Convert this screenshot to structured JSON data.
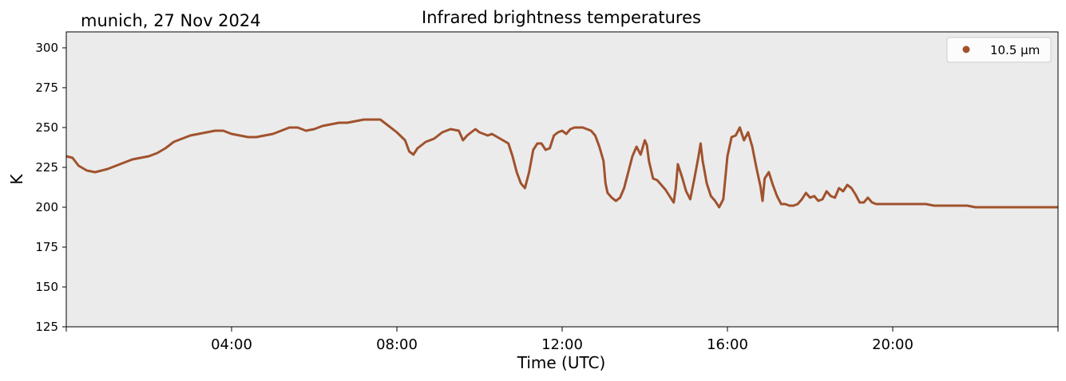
{
  "station_label": "munich, 27 Nov 2024",
  "chart_data": {
    "type": "scatter",
    "title": "Infrared brightness temperatures",
    "xlabel": "Time (UTC)",
    "ylabel": "K",
    "x_unit": "hours UTC",
    "xlim": [
      0,
      24
    ],
    "ylim": [
      125,
      310
    ],
    "x_ticks": [
      {
        "value": 4,
        "label": "04:00"
      },
      {
        "value": 8,
        "label": "08:00"
      },
      {
        "value": 12,
        "label": "12:00"
      },
      {
        "value": 16,
        "label": "16:00"
      },
      {
        "value": 20,
        "label": "20:00"
      }
    ],
    "y_ticks": [
      125,
      150,
      175,
      200,
      225,
      250,
      275,
      300
    ],
    "grid": false,
    "background_color": "#ebebeb",
    "legend_position": "top-right",
    "series": [
      {
        "name": "10.5 µm",
        "color": "#a0522d",
        "marker": "dot",
        "points": [
          [
            0.0,
            232
          ],
          [
            0.15,
            231
          ],
          [
            0.3,
            226
          ],
          [
            0.5,
            223
          ],
          [
            0.7,
            222
          ],
          [
            0.85,
            223
          ],
          [
            1.0,
            224
          ],
          [
            1.2,
            226
          ],
          [
            1.4,
            228
          ],
          [
            1.6,
            230
          ],
          [
            1.8,
            231
          ],
          [
            2.0,
            232
          ],
          [
            2.2,
            234
          ],
          [
            2.4,
            237
          ],
          [
            2.6,
            241
          ],
          [
            2.8,
            243
          ],
          [
            3.0,
            245
          ],
          [
            3.2,
            246
          ],
          [
            3.4,
            247
          ],
          [
            3.6,
            248
          ],
          [
            3.8,
            248
          ],
          [
            4.0,
            246
          ],
          [
            4.2,
            245
          ],
          [
            4.4,
            244
          ],
          [
            4.6,
            244
          ],
          [
            4.8,
            245
          ],
          [
            5.0,
            246
          ],
          [
            5.2,
            248
          ],
          [
            5.4,
            250
          ],
          [
            5.6,
            250
          ],
          [
            5.8,
            248
          ],
          [
            6.0,
            249
          ],
          [
            6.2,
            251
          ],
          [
            6.4,
            252
          ],
          [
            6.6,
            253
          ],
          [
            6.8,
            253
          ],
          [
            7.0,
            254
          ],
          [
            7.2,
            255
          ],
          [
            7.4,
            255
          ],
          [
            7.6,
            255
          ],
          [
            7.8,
            251
          ],
          [
            8.0,
            247
          ],
          [
            8.2,
            242
          ],
          [
            8.3,
            235
          ],
          [
            8.4,
            233
          ],
          [
            8.5,
            237
          ],
          [
            8.7,
            241
          ],
          [
            8.9,
            243
          ],
          [
            9.1,
            247
          ],
          [
            9.3,
            249
          ],
          [
            9.5,
            248
          ],
          [
            9.6,
            242
          ],
          [
            9.7,
            245
          ],
          [
            9.9,
            249
          ],
          [
            10.0,
            247
          ],
          [
            10.2,
            245
          ],
          [
            10.3,
            246
          ],
          [
            10.5,
            243
          ],
          [
            10.7,
            240
          ],
          [
            10.8,
            232
          ],
          [
            10.9,
            222
          ],
          [
            11.0,
            215
          ],
          [
            11.1,
            212
          ],
          [
            11.2,
            222
          ],
          [
            11.3,
            236
          ],
          [
            11.4,
            240
          ],
          [
            11.5,
            240
          ],
          [
            11.6,
            236
          ],
          [
            11.7,
            237
          ],
          [
            11.8,
            245
          ],
          [
            11.9,
            247
          ],
          [
            12.0,
            248
          ],
          [
            12.1,
            246
          ],
          [
            12.2,
            249
          ],
          [
            12.3,
            250
          ],
          [
            12.4,
            250
          ],
          [
            12.5,
            250
          ],
          [
            12.6,
            249
          ],
          [
            12.7,
            248
          ],
          [
            12.8,
            245
          ],
          [
            12.9,
            238
          ],
          [
            13.0,
            229
          ],
          [
            13.05,
            215
          ],
          [
            13.1,
            209
          ],
          [
            13.2,
            206
          ],
          [
            13.3,
            204
          ],
          [
            13.4,
            206
          ],
          [
            13.5,
            212
          ],
          [
            13.6,
            222
          ],
          [
            13.7,
            232
          ],
          [
            13.8,
            238
          ],
          [
            13.9,
            233
          ],
          [
            14.0,
            242
          ],
          [
            14.05,
            239
          ],
          [
            14.1,
            229
          ],
          [
            14.2,
            218
          ],
          [
            14.3,
            217
          ],
          [
            14.4,
            214
          ],
          [
            14.5,
            211
          ],
          [
            14.6,
            207
          ],
          [
            14.7,
            203
          ],
          [
            14.75,
            212
          ],
          [
            14.8,
            227
          ],
          [
            14.9,
            219
          ],
          [
            15.0,
            210
          ],
          [
            15.1,
            205
          ],
          [
            15.2,
            218
          ],
          [
            15.3,
            232
          ],
          [
            15.35,
            240
          ],
          [
            15.4,
            229
          ],
          [
            15.5,
            215
          ],
          [
            15.6,
            207
          ],
          [
            15.7,
            204
          ],
          [
            15.8,
            200
          ],
          [
            15.9,
            205
          ],
          [
            16.0,
            232
          ],
          [
            16.1,
            244
          ],
          [
            16.2,
            245
          ],
          [
            16.3,
            250
          ],
          [
            16.4,
            242
          ],
          [
            16.5,
            247
          ],
          [
            16.6,
            238
          ],
          [
            16.7,
            225
          ],
          [
            16.8,
            213
          ],
          [
            16.85,
            204
          ],
          [
            16.9,
            218
          ],
          [
            17.0,
            222
          ],
          [
            17.1,
            214
          ],
          [
            17.2,
            207
          ],
          [
            17.3,
            202
          ],
          [
            17.4,
            202
          ],
          [
            17.5,
            201
          ],
          [
            17.6,
            201
          ],
          [
            17.7,
            202
          ],
          [
            17.8,
            205
          ],
          [
            17.9,
            209
          ],
          [
            18.0,
            206
          ],
          [
            18.1,
            207
          ],
          [
            18.2,
            204
          ],
          [
            18.3,
            205
          ],
          [
            18.4,
            210
          ],
          [
            18.5,
            207
          ],
          [
            18.6,
            206
          ],
          [
            18.7,
            212
          ],
          [
            18.8,
            210
          ],
          [
            18.9,
            214
          ],
          [
            19.0,
            212
          ],
          [
            19.1,
            208
          ],
          [
            19.2,
            203
          ],
          [
            19.3,
            203
          ],
          [
            19.4,
            206
          ],
          [
            19.5,
            203
          ],
          [
            19.6,
            202
          ],
          [
            19.8,
            202
          ],
          [
            20.0,
            202
          ],
          [
            20.2,
            202
          ],
          [
            20.4,
            202
          ],
          [
            20.6,
            202
          ],
          [
            20.8,
            202
          ],
          [
            21.0,
            201
          ],
          [
            21.2,
            201
          ],
          [
            21.4,
            201
          ],
          [
            21.6,
            201
          ],
          [
            21.8,
            201
          ],
          [
            22.0,
            200
          ],
          [
            22.2,
            200
          ],
          [
            22.4,
            200
          ],
          [
            22.6,
            200
          ],
          [
            22.8,
            200
          ],
          [
            23.0,
            200
          ],
          [
            23.2,
            200
          ],
          [
            23.4,
            200
          ],
          [
            23.6,
            200
          ],
          [
            23.8,
            200
          ],
          [
            24.0,
            200
          ]
        ]
      }
    ]
  }
}
